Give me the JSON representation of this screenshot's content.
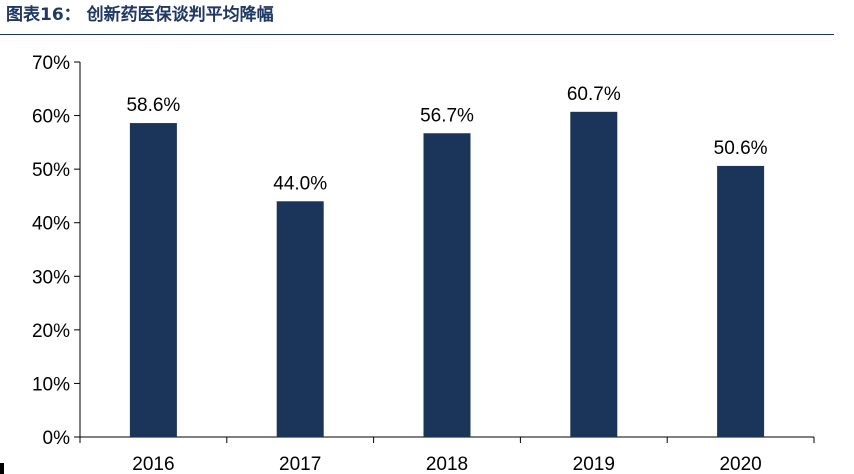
{
  "header": {
    "title": "图表16： 创新药医保谈判平均降幅"
  },
  "chart_data": {
    "type": "bar",
    "title": "",
    "xlabel": "",
    "ylabel": "",
    "categories": [
      "2016",
      "2017",
      "2018",
      "2019",
      "2020"
    ],
    "values": [
      58.6,
      44.0,
      56.7,
      60.7,
      50.6
    ],
    "data_labels": [
      "58.6%",
      "44.0%",
      "56.7%",
      "60.7%",
      "50.6%"
    ],
    "ylim": [
      0,
      70
    ],
    "y_ticks": [
      0,
      10,
      20,
      30,
      40,
      50,
      60,
      70
    ],
    "y_tick_labels": [
      "0%",
      "10%",
      "20%",
      "30%",
      "40%",
      "50%",
      "60%",
      "70%"
    ],
    "grid": false,
    "legend": "none",
    "bar_color": "#1b3459"
  }
}
